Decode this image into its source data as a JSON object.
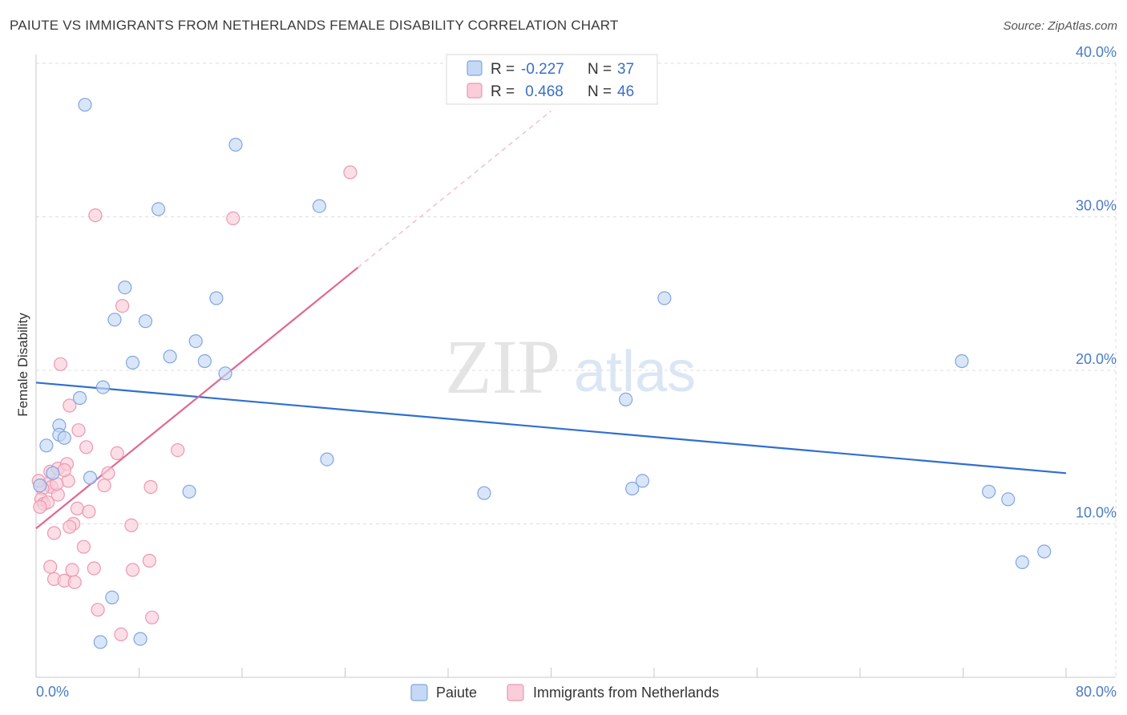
{
  "header": {
    "title": "PAIUTE VS IMMIGRANTS FROM NETHERLANDS FEMALE DISABILITY CORRELATION CHART",
    "source": "Source: ZipAtlas.com"
  },
  "legend": {
    "rows": [
      {
        "r_label": "R =",
        "r_value": "-0.227",
        "n_label": "N =",
        "n_value": "37"
      },
      {
        "r_label": "R =",
        "r_value": " 0.468",
        "n_label": "N =",
        "n_value": "46"
      }
    ]
  },
  "watermark": {
    "zip": "ZIP",
    "atlas": "atlas"
  },
  "colors": {
    "paiute_fill": "#c5d8f5",
    "paiute_stroke": "#7fa6e0",
    "paiute_line": "#2f6fd0",
    "neth_fill": "#f9cdd9",
    "neth_stroke": "#ee97b0",
    "neth_line": "#e26790",
    "grid": "#dddddd",
    "tick_text": "#4a7cc4"
  },
  "chart_data": {
    "type": "scatter",
    "title": "PAIUTE VS IMMIGRANTS FROM NETHERLANDS FEMALE DISABILITY CORRELATION CHART",
    "xlabel": "",
    "ylabel": "Female Disability",
    "xlim": [
      0,
      80
    ],
    "ylim": [
      0,
      40
    ],
    "x_tick_labels": [
      "0.0%",
      "80.0%"
    ],
    "y_ticks": [
      10,
      20,
      30,
      40
    ],
    "y_tick_labels": [
      "10.0%",
      "20.0%",
      "30.0%",
      "40.0%"
    ],
    "series": [
      {
        "name": "Paiute",
        "r": -0.227,
        "n": 37,
        "trend": {
          "x": [
            0,
            80
          ],
          "y": [
            19.2,
            13.3
          ]
        },
        "points": [
          [
            3.8,
            37.3
          ],
          [
            15.5,
            34.7
          ],
          [
            9.5,
            30.5
          ],
          [
            22.0,
            30.7
          ],
          [
            6.9,
            25.4
          ],
          [
            14.0,
            24.7
          ],
          [
            6.1,
            23.3
          ],
          [
            8.5,
            23.2
          ],
          [
            12.4,
            21.9
          ],
          [
            10.4,
            20.9
          ],
          [
            7.5,
            20.5
          ],
          [
            13.1,
            20.6
          ],
          [
            14.7,
            19.8
          ],
          [
            5.2,
            18.9
          ],
          [
            3.4,
            18.2
          ],
          [
            1.8,
            16.4
          ],
          [
            1.8,
            15.8
          ],
          [
            2.2,
            15.6
          ],
          [
            0.8,
            15.1
          ],
          [
            1.3,
            13.3
          ],
          [
            4.2,
            13.0
          ],
          [
            0.3,
            12.5
          ],
          [
            22.6,
            14.2
          ],
          [
            11.9,
            12.1
          ],
          [
            34.8,
            12.0
          ],
          [
            45.8,
            18.1
          ],
          [
            46.3,
            12.3
          ],
          [
            47.1,
            12.8
          ],
          [
            48.8,
            24.7
          ],
          [
            71.9,
            20.6
          ],
          [
            74.0,
            12.1
          ],
          [
            75.5,
            11.6
          ],
          [
            76.6,
            7.5
          ],
          [
            78.3,
            8.2
          ],
          [
            5.9,
            5.2
          ],
          [
            5.0,
            2.3
          ],
          [
            8.1,
            2.5
          ]
        ]
      },
      {
        "name": "Immigrants from Netherlands",
        "r": 0.468,
        "n": 46,
        "trend": {
          "x": [
            0,
            25
          ],
          "y": [
            9.7,
            26.7
          ]
        },
        "trend_extension": {
          "x": [
            25,
            40
          ],
          "y": [
            26.7,
            36.9
          ]
        },
        "points": [
          [
            24.4,
            32.9
          ],
          [
            4.6,
            30.1
          ],
          [
            15.3,
            29.9
          ],
          [
            6.7,
            24.2
          ],
          [
            1.9,
            20.4
          ],
          [
            2.6,
            17.7
          ],
          [
            3.3,
            16.1
          ],
          [
            3.9,
            15.0
          ],
          [
            11.0,
            14.8
          ],
          [
            6.3,
            14.6
          ],
          [
            1.1,
            13.4
          ],
          [
            1.7,
            13.6
          ],
          [
            2.4,
            13.9
          ],
          [
            5.6,
            13.3
          ],
          [
            0.9,
            12.6
          ],
          [
            1.2,
            12.4
          ],
          [
            0.5,
            12.3
          ],
          [
            2.5,
            12.8
          ],
          [
            5.3,
            12.5
          ],
          [
            8.9,
            12.4
          ],
          [
            1.7,
            11.9
          ],
          [
            0.4,
            11.6
          ],
          [
            0.6,
            11.3
          ],
          [
            0.9,
            11.4
          ],
          [
            0.3,
            11.1
          ],
          [
            3.2,
            11.0
          ],
          [
            4.1,
            10.8
          ],
          [
            2.9,
            10.0
          ],
          [
            2.6,
            9.8
          ],
          [
            7.4,
            9.9
          ],
          [
            1.4,
            9.4
          ],
          [
            3.7,
            8.5
          ],
          [
            1.1,
            7.2
          ],
          [
            2.8,
            7.0
          ],
          [
            4.5,
            7.1
          ],
          [
            7.5,
            7.0
          ],
          [
            8.8,
            7.6
          ],
          [
            1.4,
            6.4
          ],
          [
            2.2,
            6.3
          ],
          [
            3.0,
            6.2
          ],
          [
            4.8,
            4.4
          ],
          [
            9.0,
            3.9
          ],
          [
            6.6,
            2.8
          ],
          [
            0.2,
            12.8
          ],
          [
            1.6,
            12.6
          ],
          [
            2.2,
            13.5
          ]
        ]
      }
    ]
  },
  "bottom_legend": {
    "items": [
      "Paiute",
      "Immigrants from Netherlands"
    ]
  }
}
